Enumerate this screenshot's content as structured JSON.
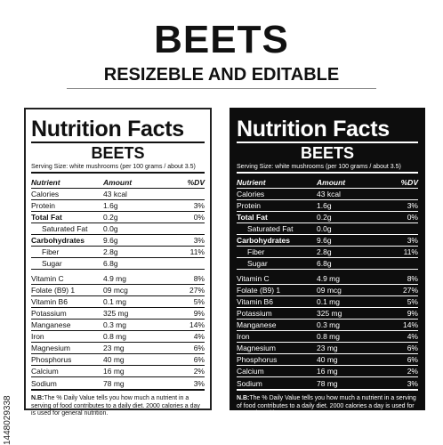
{
  "header": {
    "title": "BEETS",
    "subtitle": "RESIZEBLE AND EDITABLE"
  },
  "stock_id": "1448029338",
  "label": {
    "heading": "Nutrition Facts",
    "product": "BEETS",
    "serving": "Serving Size: white mushrooms (per 100 grams / about 3.5)",
    "columns": {
      "nutrient": "Nutrient",
      "amount": "Amount",
      "dv": "%DV"
    },
    "rows": [
      {
        "name": "Calories",
        "amount": "43 kcal",
        "dv": ""
      },
      {
        "name": "Protein",
        "amount": "1.6g",
        "dv": "3%"
      },
      {
        "name": "Total Fat",
        "amount": "0.2g",
        "dv": "0%"
      },
      {
        "name": "Saturated Fat",
        "amount": "0.0g",
        "dv": ""
      },
      {
        "name": "Carbohydrates",
        "amount": "9.6g",
        "dv": "3%"
      },
      {
        "name": "Fiber",
        "amount": "2.8g",
        "dv": "11%"
      },
      {
        "name": "Sugar",
        "amount": "6.8g",
        "dv": ""
      },
      {
        "name": "Vitamin C",
        "amount": "4.9 mg",
        "dv": "8%"
      },
      {
        "name": "Folate (B9)      1",
        "amount": "09 mcg",
        "dv": "27%"
      },
      {
        "name": "Vitamin B6",
        "amount": "0.1 mg",
        "dv": "5%"
      },
      {
        "name": "Potassium",
        "amount": "325 mg",
        "dv": "9%"
      },
      {
        "name": "Manganese",
        "amount": "0.3 mg",
        "dv": "14%"
      },
      {
        "name": "Iron",
        "amount": "0.8 mg",
        "dv": "4%"
      },
      {
        "name": "Magnesium",
        "amount": "23 mg",
        "dv": "6%"
      },
      {
        "name": "Phosphorus",
        "amount": "40 mg",
        "dv": "6%"
      },
      {
        "name": "Calcium",
        "amount": "16 mg",
        "dv": "2%"
      },
      {
        "name": "Sodium",
        "amount": "78 mg",
        "dv": "3%"
      }
    ],
    "note_label": "N.B:",
    "note_text": "The % Daily Value tells you how much a nutrient in a serving of food contributes to a daily diet. 2000 calories a day is used for general nutrition."
  }
}
